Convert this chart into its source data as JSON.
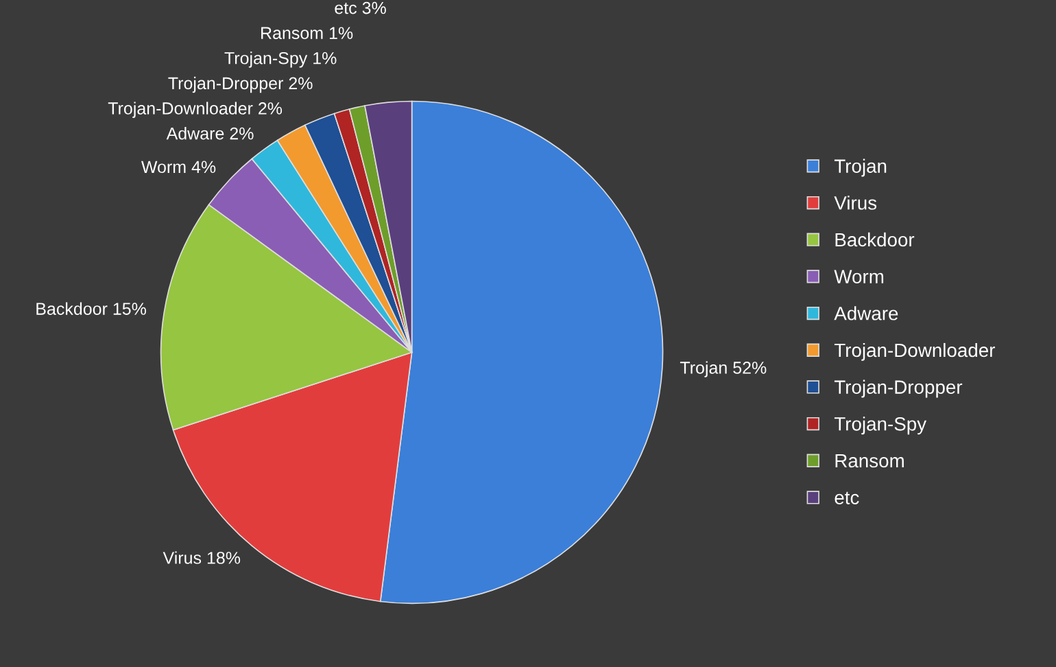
{
  "chart_data": {
    "type": "pie",
    "categories": [
      "Trojan",
      "Virus",
      "Backdoor",
      "Worm",
      "Adware",
      "Trojan-Downloader",
      "Trojan-Dropper",
      "Trojan-Spy",
      "Ransom",
      "etc"
    ],
    "values": [
      52,
      18,
      15,
      4,
      2,
      2,
      2,
      1,
      1,
      3
    ],
    "value_labels": [
      "52%",
      "18%",
      "15%",
      "4%",
      "2%",
      "2%",
      "2%",
      "1%",
      "1%",
      "3%"
    ],
    "colors": [
      "#3b7fd9",
      "#e23d3d",
      "#96c541",
      "#8a5eb4",
      "#2fb8dc",
      "#f29a2e",
      "#1f4f94",
      "#b02424",
      "#6e9e2a",
      "#5a3f7d"
    ],
    "legend": "right"
  }
}
